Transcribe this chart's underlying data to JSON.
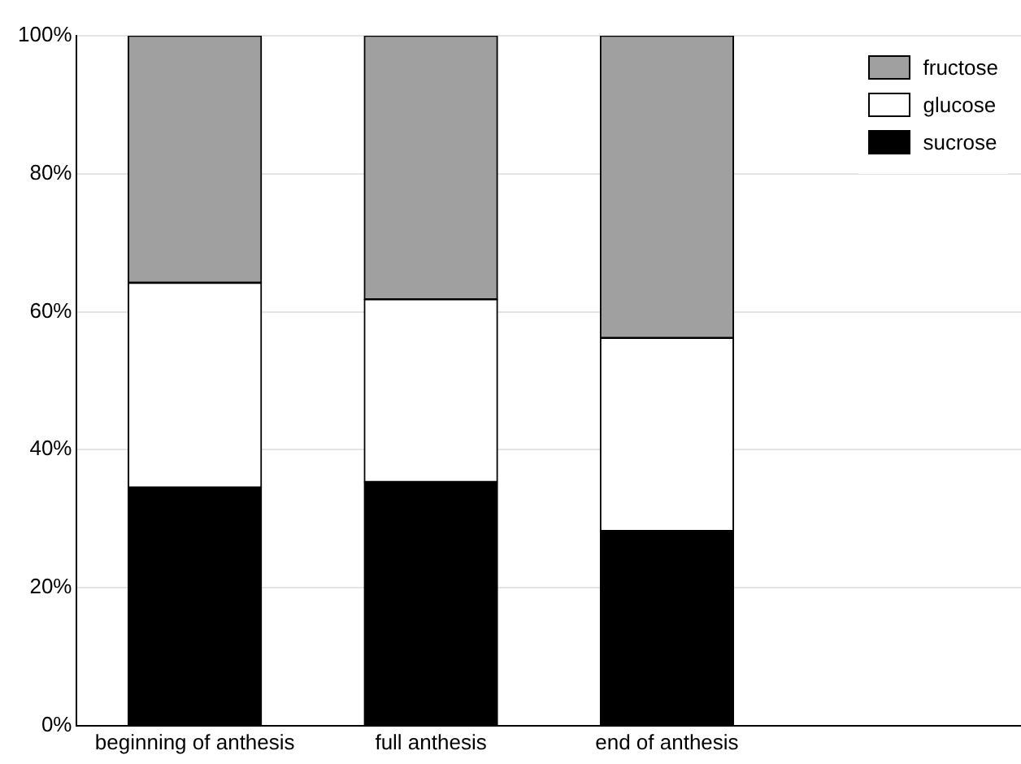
{
  "chart_data": {
    "type": "bar",
    "stacked": true,
    "categories": [
      "beginning of anthesis",
      "full anthesis",
      "end of anthesis"
    ],
    "series": [
      {
        "name": "sucrose",
        "color": "#000000",
        "values": [
          34.5,
          35.3,
          28.2
        ]
      },
      {
        "name": "glucose",
        "color": "#ffffff",
        "values": [
          29.7,
          26.5,
          28.0
        ]
      },
      {
        "name": "fructose",
        "color": "#a0a0a0",
        "values": [
          35.8,
          38.2,
          43.8
        ]
      }
    ],
    "ylim": [
      0,
      100
    ],
    "yticks": [
      {
        "value": 0,
        "label": "0%"
      },
      {
        "value": 20,
        "label": "20%"
      },
      {
        "value": 40,
        "label": "40%"
      },
      {
        "value": 60,
        "label": "60%"
      },
      {
        "value": 80,
        "label": "80%"
      },
      {
        "value": 100,
        "label": "100%"
      }
    ],
    "grid": "y",
    "legend": "top right"
  }
}
